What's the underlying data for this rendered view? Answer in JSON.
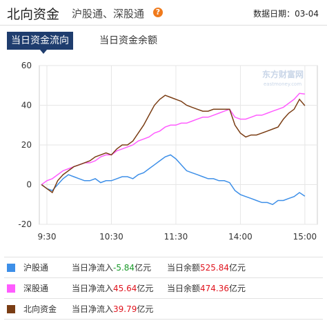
{
  "header": {
    "title": "北向资金",
    "subtitle": "沪股通、深股通",
    "help_icon": "?",
    "date_label": "数据日期：",
    "date": "03-04"
  },
  "tabs": [
    "当日资金流向",
    "当日资金余额"
  ],
  "watermark": {
    "brand": "东方财富网",
    "site": "eastmoney.com"
  },
  "chart_data": {
    "type": "line",
    "categories": [
      null,
      "9:30",
      null,
      null,
      null,
      null,
      null,
      null,
      null,
      null,
      null,
      null,
      null,
      "10:30",
      null,
      null,
      null,
      null,
      null,
      null,
      null,
      null,
      null,
      null,
      null,
      "11:30",
      null,
      null,
      null,
      null,
      null,
      null,
      null,
      null,
      null,
      null,
      null,
      "14:00",
      null,
      null,
      null,
      null,
      null,
      null,
      null,
      null,
      null,
      null,
      null,
      "15:00"
    ],
    "ylim": [
      -20,
      60
    ],
    "yticks": [
      -20,
      0,
      20,
      40,
      60
    ],
    "grid": true,
    "series": [
      {
        "name": "沪股通",
        "color": "#3d8fe8",
        "values": [
          0,
          -2,
          -3,
          0,
          3,
          5,
          4,
          3,
          2,
          2,
          3,
          1,
          2,
          2,
          3,
          4,
          4,
          3,
          5,
          6,
          8,
          10,
          12,
          14,
          15,
          13,
          10,
          7,
          6,
          5,
          4,
          3,
          3,
          2,
          2,
          1,
          -3,
          -5,
          -6,
          -7,
          -8,
          -9,
          -9,
          -10,
          -8,
          -8,
          -7,
          -6,
          -4,
          -5.84
        ]
      },
      {
        "name": "深股通",
        "color": "#ff5cff",
        "values": [
          0,
          2,
          3,
          5,
          7,
          8,
          9,
          10,
          11,
          11,
          12,
          14,
          15,
          15,
          17,
          18,
          19,
          20,
          22,
          23,
          24,
          26,
          27,
          29,
          30,
          30,
          31,
          31,
          32,
          33,
          34,
          34,
          35,
          36,
          37,
          38,
          34,
          33,
          33,
          34,
          35,
          35,
          36,
          37,
          38,
          39,
          41,
          43,
          46,
          45.64
        ]
      },
      {
        "name": "北向资金",
        "color": "#7a3d14",
        "values": [
          0,
          -2,
          -4,
          2,
          5,
          7,
          9,
          10,
          11,
          12,
          14,
          15,
          16,
          15,
          18,
          20,
          20,
          22,
          26,
          30,
          35,
          40,
          43,
          45,
          44,
          43,
          42,
          40,
          39,
          38,
          37,
          37,
          38,
          38,
          38,
          38,
          30,
          26,
          24,
          25,
          25,
          26,
          27,
          28,
          29,
          33,
          36,
          38,
          43,
          39.79
        ]
      }
    ]
  },
  "summary": {
    "inflow_label": "当日净流入",
    "balance_label": "当日余额",
    "unit": "亿元",
    "rows": [
      {
        "net_inflow": -5.84,
        "balance": 525.84
      },
      {
        "net_inflow": 45.64,
        "balance": 474.36
      },
      {
        "net_inflow": 39.79
      }
    ]
  }
}
